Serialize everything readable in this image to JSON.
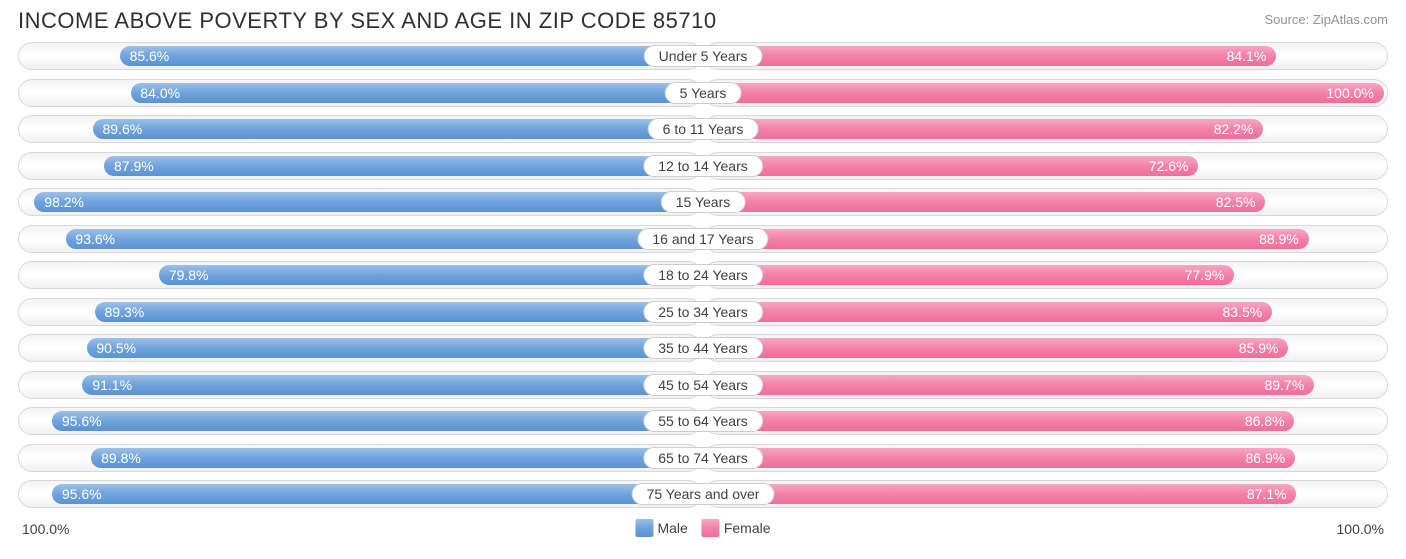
{
  "title": "INCOME ABOVE POVERTY BY SEX AND AGE IN ZIP CODE 85710",
  "source": "Source: ZipAtlas.com",
  "colors": {
    "male_top": "#9cc0e7",
    "male_mid": "#6fa3db",
    "male_bot": "#5a93d4",
    "female_top": "#f7a8c1",
    "female_mid": "#f281a8",
    "female_bot": "#ef6e9a",
    "track_border": "#d8d8d8",
    "title_color": "#303030",
    "source_color": "#909090",
    "label_color": "#404040"
  },
  "axis": {
    "left": "100.0%",
    "right": "100.0%",
    "max": 100.0
  },
  "legend": {
    "male": "Male",
    "female": "Female"
  },
  "rows": [
    {
      "category": "Under 5 Years",
      "male": 85.6,
      "female": 84.1,
      "male_label": "85.6%",
      "female_label": "84.1%"
    },
    {
      "category": "5 Years",
      "male": 84.0,
      "female": 100.0,
      "male_label": "84.0%",
      "female_label": "100.0%"
    },
    {
      "category": "6 to 11 Years",
      "male": 89.6,
      "female": 82.2,
      "male_label": "89.6%",
      "female_label": "82.2%"
    },
    {
      "category": "12 to 14 Years",
      "male": 87.9,
      "female": 72.6,
      "male_label": "87.9%",
      "female_label": "72.6%"
    },
    {
      "category": "15 Years",
      "male": 98.2,
      "female": 82.5,
      "male_label": "98.2%",
      "female_label": "82.5%"
    },
    {
      "category": "16 and 17 Years",
      "male": 93.6,
      "female": 88.9,
      "male_label": "93.6%",
      "female_label": "88.9%"
    },
    {
      "category": "18 to 24 Years",
      "male": 79.8,
      "female": 77.9,
      "male_label": "79.8%",
      "female_label": "77.9%"
    },
    {
      "category": "25 to 34 Years",
      "male": 89.3,
      "female": 83.5,
      "male_label": "89.3%",
      "female_label": "83.5%"
    },
    {
      "category": "35 to 44 Years",
      "male": 90.5,
      "female": 85.9,
      "male_label": "90.5%",
      "female_label": "85.9%"
    },
    {
      "category": "45 to 54 Years",
      "male": 91.1,
      "female": 89.7,
      "male_label": "91.1%",
      "female_label": "89.7%"
    },
    {
      "category": "55 to 64 Years",
      "male": 95.6,
      "female": 86.8,
      "male_label": "95.6%",
      "female_label": "86.8%"
    },
    {
      "category": "65 to 74 Years",
      "male": 89.8,
      "female": 86.9,
      "male_label": "89.8%",
      "female_label": "86.9%"
    },
    {
      "category": "75 Years and over",
      "male": 95.6,
      "female": 87.1,
      "male_label": "95.6%",
      "female_label": "87.1%"
    }
  ]
}
